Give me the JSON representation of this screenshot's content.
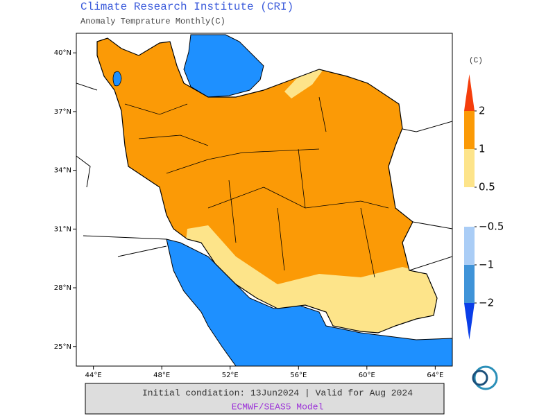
{
  "header": {
    "title": "Climate Research Institute (CRI)",
    "subtitle": "Anomaly Temprature Monthly(C)"
  },
  "map": {
    "xlim": [
      43,
      65
    ],
    "ylim": [
      24,
      41
    ],
    "xticks": [
      {
        "value": 44,
        "label": "44°E"
      },
      {
        "value": 48,
        "label": "48°E"
      },
      {
        "value": 52,
        "label": "52°E"
      },
      {
        "value": 56,
        "label": "56°E"
      },
      {
        "value": 60,
        "label": "60°E"
      },
      {
        "value": 64,
        "label": "64°E"
      }
    ],
    "yticks": [
      {
        "value": 25,
        "label": "25°N"
      },
      {
        "value": 28,
        "label": "28°N"
      },
      {
        "value": 31,
        "label": "31°N"
      },
      {
        "value": 34,
        "label": "34°N"
      },
      {
        "value": 37,
        "label": "37°N"
      },
      {
        "value": 40,
        "label": "40°N"
      }
    ]
  },
  "colorbar": {
    "unit": "(C)",
    "ticks": [
      2,
      1,
      0.5,
      {
        "value": -0.5,
        "label": "−0.5"
      },
      {
        "value": -1,
        "label": "−1"
      },
      {
        "value": -2,
        "label": "−2"
      }
    ],
    "colors": [
      "#f53d0b",
      "#fb9a06",
      "#fde48a",
      "#aacdf6",
      "#3f93d8",
      "#0a3ee8"
    ]
  },
  "footer": {
    "line1": "Initial condiation: 13Jun2024 | Valid for Aug 2024",
    "line2": "ECMWF/SEAS5 Model"
  }
}
